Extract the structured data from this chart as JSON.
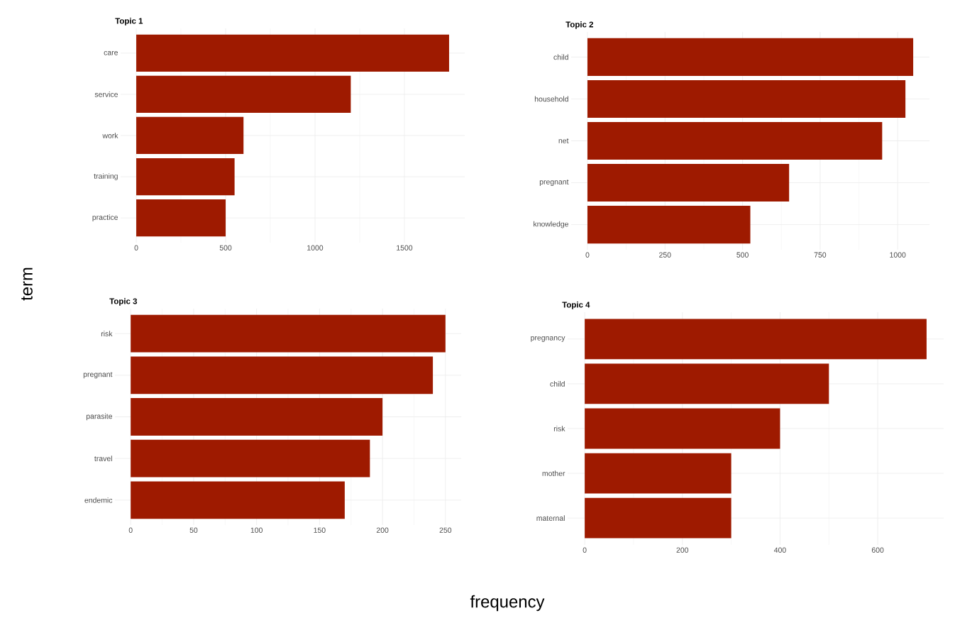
{
  "chart_data": [
    {
      "type": "bar",
      "orientation": "horizontal",
      "title": "Topic 1",
      "ylabel": "term",
      "xlabel": "frequency",
      "categories": [
        "care",
        "service",
        "work",
        "training",
        "practice"
      ],
      "values": [
        1750,
        1200,
        600,
        550,
        500
      ],
      "color": "#9e1a00",
      "xlim": [
        -87.5,
        1837.5
      ],
      "xticks": [
        0,
        500,
        1000,
        1500
      ],
      "grid": true
    },
    {
      "type": "bar",
      "orientation": "horizontal",
      "title": "Topic 2",
      "categories": [
        "child",
        "household",
        "net",
        "pregnant",
        "knowledge"
      ],
      "values": [
        1050,
        1025,
        950,
        650,
        525
      ],
      "color": "#9e1a00",
      "xlim": [
        -52.5,
        1102.5
      ],
      "xticks": [
        0,
        250,
        500,
        750,
        1000
      ],
      "grid": true
    },
    {
      "type": "bar",
      "orientation": "horizontal",
      "title": "Topic 3",
      "categories": [
        "risk",
        "pregnant",
        "parasite",
        "travel",
        "endemic"
      ],
      "values": [
        250,
        240,
        200,
        190,
        170
      ],
      "color": "#9e1a00",
      "xlim": [
        -12.5,
        262.5
      ],
      "xticks": [
        0,
        50,
        100,
        150,
        200,
        250
      ],
      "grid": true
    },
    {
      "type": "bar",
      "orientation": "horizontal",
      "title": "Topic 4",
      "categories": [
        "pregnancy",
        "child",
        "risk",
        "mother",
        "maternal"
      ],
      "values": [
        700,
        500,
        400,
        300,
        300
      ],
      "color": "#9e1a00",
      "xlim": [
        -35,
        735
      ],
      "xticks": [
        0,
        200,
        400,
        600
      ],
      "grid": true
    }
  ]
}
